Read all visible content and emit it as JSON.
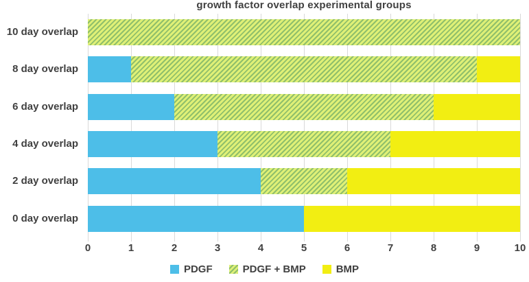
{
  "title": "growth factor overlap experimental groups",
  "colors": {
    "text": "#404040",
    "gridline": "#d9d9d9",
    "pdgf_blue": "#4dbee8",
    "bmp_yellow": "#f2ee12",
    "overlap_hatch_light": "#dff077",
    "overlap_hatch_green": "#8fbf6b"
  },
  "chart_data": {
    "type": "bar",
    "orientation": "horizontal",
    "stacked": true,
    "title": "growth factor overlap experimental groups",
    "categories": [
      "10 day overlap",
      "8 day overlap",
      "6 day overlap",
      "4 day overlap",
      "2 day overlap",
      "0 day overlap"
    ],
    "series": [
      {
        "name": "PDGF",
        "fill": "solid",
        "color": "#4dbee8",
        "values": [
          0,
          1,
          2,
          3,
          4,
          5
        ]
      },
      {
        "name": "PDGF + BMP",
        "fill": "hatch",
        "color": "#8fbf6b",
        "color2": "#dff077",
        "values": [
          10,
          8,
          6,
          4,
          2,
          0
        ]
      },
      {
        "name": "BMP",
        "fill": "solid",
        "color": "#f2ee12",
        "values": [
          0,
          1,
          2,
          3,
          4,
          5
        ]
      }
    ],
    "x_ticks": [
      0,
      1,
      2,
      3,
      4,
      5,
      6,
      7,
      8,
      9,
      10
    ],
    "xlim": [
      0,
      10
    ],
    "grid": true,
    "legend": [
      "PDGF",
      "PDGF + BMP",
      "BMP"
    ],
    "legend_position": "bottom"
  }
}
